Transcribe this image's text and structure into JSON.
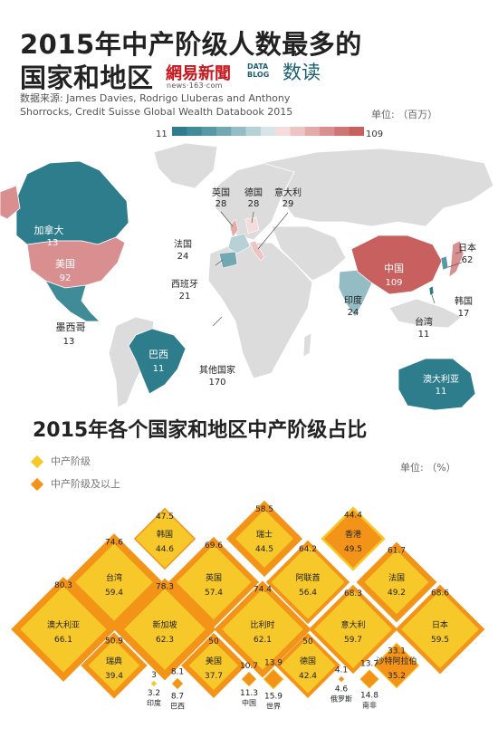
{
  "title_line1": "2015年中产阶级人数最多的",
  "title_line2": "国家和地区",
  "brand": {
    "logo": "網易新聞",
    "logo_sub": "news·163·com",
    "datablog": "DATA BLOG",
    "datablog_cn": "数读"
  },
  "source": "数据来源: James Davies, Rodrigo Lluberas and Anthony Shorrocks, Credit Suisse Global Wealth Databook 2015",
  "map_unit": "单位: （百万）",
  "scale": {
    "min": "11",
    "max": "109",
    "colors": [
      "#2e7d8c",
      "#3f8b98",
      "#5698a4",
      "#71a8b2",
      "#93bcc4",
      "#b7d1d6",
      "#d8e5e8",
      "#f4dcdc",
      "#ecc4c4",
      "#e3aaaa",
      "#d98f8f",
      "#ce7676",
      "#c86060"
    ]
  },
  "map_countries": [
    {
      "key": "canada",
      "name": "加拿大",
      "value": "13"
    },
    {
      "key": "usa",
      "name": "美国",
      "value": "92"
    },
    {
      "key": "mexico",
      "name": "墨西哥",
      "value": "13"
    },
    {
      "key": "brazil",
      "name": "巴西",
      "value": "11"
    },
    {
      "key": "uk",
      "name": "英国",
      "value": "28"
    },
    {
      "key": "germany",
      "name": "德国",
      "value": "28"
    },
    {
      "key": "italy",
      "name": "意大利",
      "value": "29"
    },
    {
      "key": "france",
      "name": "法国",
      "value": "24"
    },
    {
      "key": "spain",
      "name": "西班牙",
      "value": "21"
    },
    {
      "key": "other",
      "name": "其他国家",
      "value": "170"
    },
    {
      "key": "india",
      "name": "印度",
      "value": "24"
    },
    {
      "key": "china",
      "name": "中国",
      "value": "109"
    },
    {
      "key": "japan",
      "name": "日本",
      "value": "62"
    },
    {
      "key": "korea",
      "name": "韩国",
      "value": "17"
    },
    {
      "key": "taiwan",
      "name": "台湾",
      "value": "11"
    },
    {
      "key": "australia",
      "name": "澳大利亚",
      "value": "11"
    }
  ],
  "section2_title": "2015年各个国家和地区中产阶级占比",
  "legend": [
    {
      "label": "中产阶级",
      "color": "#f7c82a"
    },
    {
      "label": "中产阶级及以上",
      "color": "#f39419"
    }
  ],
  "grid_unit": "单位: （%）",
  "chart_data": {
    "type": "bar",
    "title": "2015年各个国家和地区中产阶级占比",
    "unit": "%",
    "series": [
      {
        "name": "中产阶级"
      },
      {
        "name": "中产阶级及以上"
      }
    ],
    "items": [
      {
        "name": "韩国",
        "middle": 44.6,
        "above": 47.5
      },
      {
        "name": "瑞士",
        "middle": 44.5,
        "above": 58.5
      },
      {
        "name": "香港",
        "middle": 49.5,
        "above": 44.4
      },
      {
        "name": "台湾",
        "middle": 59.4,
        "above": 74.6
      },
      {
        "name": "英国",
        "middle": 57.4,
        "above": 69.6
      },
      {
        "name": "阿联酋",
        "middle": 56.4,
        "above": 64.2
      },
      {
        "name": "法国",
        "middle": 49.2,
        "above": 61.7
      },
      {
        "name": "澳大利亚",
        "middle": 66.1,
        "above": 80.3
      },
      {
        "name": "新加坡",
        "middle": 62.3,
        "above": 78.3
      },
      {
        "name": "比利时",
        "middle": 62.1,
        "above": 74.4
      },
      {
        "name": "意大利",
        "middle": 59.7,
        "above": 68.3
      },
      {
        "name": "日本",
        "middle": 59.5,
        "above": 68.6
      },
      {
        "name": "瑞典",
        "middle": 39.4,
        "above": 50.9
      },
      {
        "name": "美国",
        "middle": 37.7,
        "above": 50
      },
      {
        "name": "德国",
        "middle": 42.4,
        "above": 50
      },
      {
        "name": "沙特阿拉伯",
        "middle": 35.2,
        "above": 33.1
      },
      {
        "name": "印度",
        "middle": 3.2,
        "above": 3
      },
      {
        "name": "巴西",
        "middle": 8.7,
        "above": 8.1
      },
      {
        "name": "中国",
        "middle": 11.3,
        "above": 10.7
      },
      {
        "name": "世界",
        "middle": 15.9,
        "above": 13.9
      },
      {
        "name": "俄罗斯",
        "middle": 4.6,
        "above": 4.1
      },
      {
        "name": "南非",
        "middle": 14.8,
        "above": 13.7
      }
    ]
  }
}
